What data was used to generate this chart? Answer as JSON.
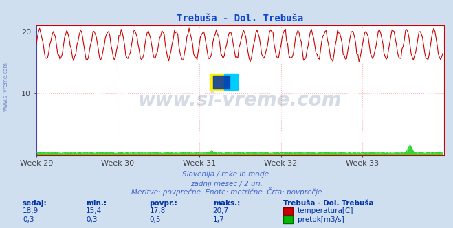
{
  "title": "Trebuša - Dol. Trebuša",
  "title_color": "#1144cc",
  "bg_color": "#d0dff0",
  "plot_bg_color": "#ffffff",
  "grid_color": "#ffbbbb",
  "grid_style": ":",
  "xlabel_weeks": [
    "Week 29",
    "Week 30",
    "Week 31",
    "Week 32",
    "Week 33"
  ],
  "xlim": [
    0,
    360
  ],
  "ylim": [
    0,
    21
  ],
  "yticks": [
    10,
    20
  ],
  "avg_line_value": 17.8,
  "avg_line_color": "#ff8888",
  "temp_color": "#cc0000",
  "flow_color": "#00cc00",
  "flow_fill_color": "#006600",
  "temp_min": 15.4,
  "temp_max": 20.7,
  "temp_avg": 17.8,
  "temp_current": "18,9",
  "flow_min": 0.3,
  "flow_max": 1.7,
  "flow_avg": 0.5,
  "flow_current": "0,3",
  "watermark": "www.si-vreme.com",
  "watermark_color": "#1a3a6a",
  "watermark_alpha": 0.18,
  "subtitle1": "Slovenija / reke in morje.",
  "subtitle2": "zadnji mesec / 2 uri.",
  "subtitle3": "Meritve: povprečne  Enote: metrične  Črta: povprečje",
  "subtitle_color": "#4466cc",
  "label_color": "#0033aa",
  "n_points": 360,
  "temp_base": 17.8,
  "temp_amplitude": 2.3,
  "temp_period": 12,
  "flow_base": 0.35,
  "flow_spike_positions": [
    30,
    100,
    155,
    175,
    330
  ],
  "flow_spike_heights": [
    0.5,
    0.35,
    0.7,
    0.4,
    1.7
  ],
  "left_label": "www.si-vreme.com",
  "left_label_color": "#3355aa",
  "stat_label1_sedaj": "sedaj:",
  "stat_label2_min": "min.:",
  "stat_label3_povpr": "povpr.:",
  "stat_label4_maks": "maks.:",
  "stat_title": "Trebuša - Dol. Trebuša",
  "stat_row1_vals": [
    "18,9",
    "15,4",
    "17,8",
    "20,7"
  ],
  "stat_row2_vals": [
    "0,3",
    "0,3",
    "0,5",
    "1,7"
  ],
  "stat_temp_label": "temperatura[C]",
  "stat_flow_label": "pretok[m3/s]"
}
